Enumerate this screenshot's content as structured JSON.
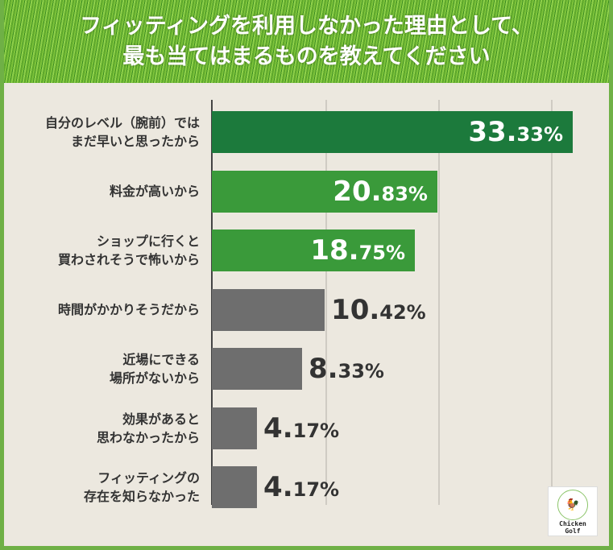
{
  "header": {
    "line1": "フィッティングを利用しなかった理由として、",
    "line2": "最も当てはまるものを教えてください"
  },
  "logo": {
    "line1": "Chicken",
    "line2": "Golf"
  },
  "chart_data": {
    "type": "bar",
    "orientation": "horizontal",
    "title": "フィッティングを利用しなかった理由として、最も当てはまるものを教えてください",
    "categories": [
      [
        "自分のレベル（腕前）では",
        "まだ早いと思ったから"
      ],
      [
        "料金が高いから"
      ],
      [
        "ショップに行くと",
        "買わされそうで怖いから"
      ],
      [
        "時間がかかりそうだから"
      ],
      [
        "近場にできる",
        "場所がないから"
      ],
      [
        "効果があると",
        "思わなかったから"
      ],
      [
        "フィッティングの",
        "存在を知らなかった"
      ]
    ],
    "values": [
      33.33,
      20.83,
      18.75,
      10.42,
      8.33,
      4.17,
      4.17
    ],
    "value_labels": [
      [
        "33.",
        "33%"
      ],
      [
        "20.",
        "83%"
      ],
      [
        "18.",
        "75%"
      ],
      [
        "10.",
        "42%"
      ],
      [
        "8.",
        "33%"
      ],
      [
        "4.",
        "17%"
      ],
      [
        "4.",
        "17%"
      ]
    ],
    "colors": [
      "#1c7a3c",
      "#3a9a3a",
      "#3a9a3a",
      "#6e6e6e",
      "#6e6e6e",
      "#6e6e6e",
      "#6e6e6e"
    ],
    "grid": true
  }
}
